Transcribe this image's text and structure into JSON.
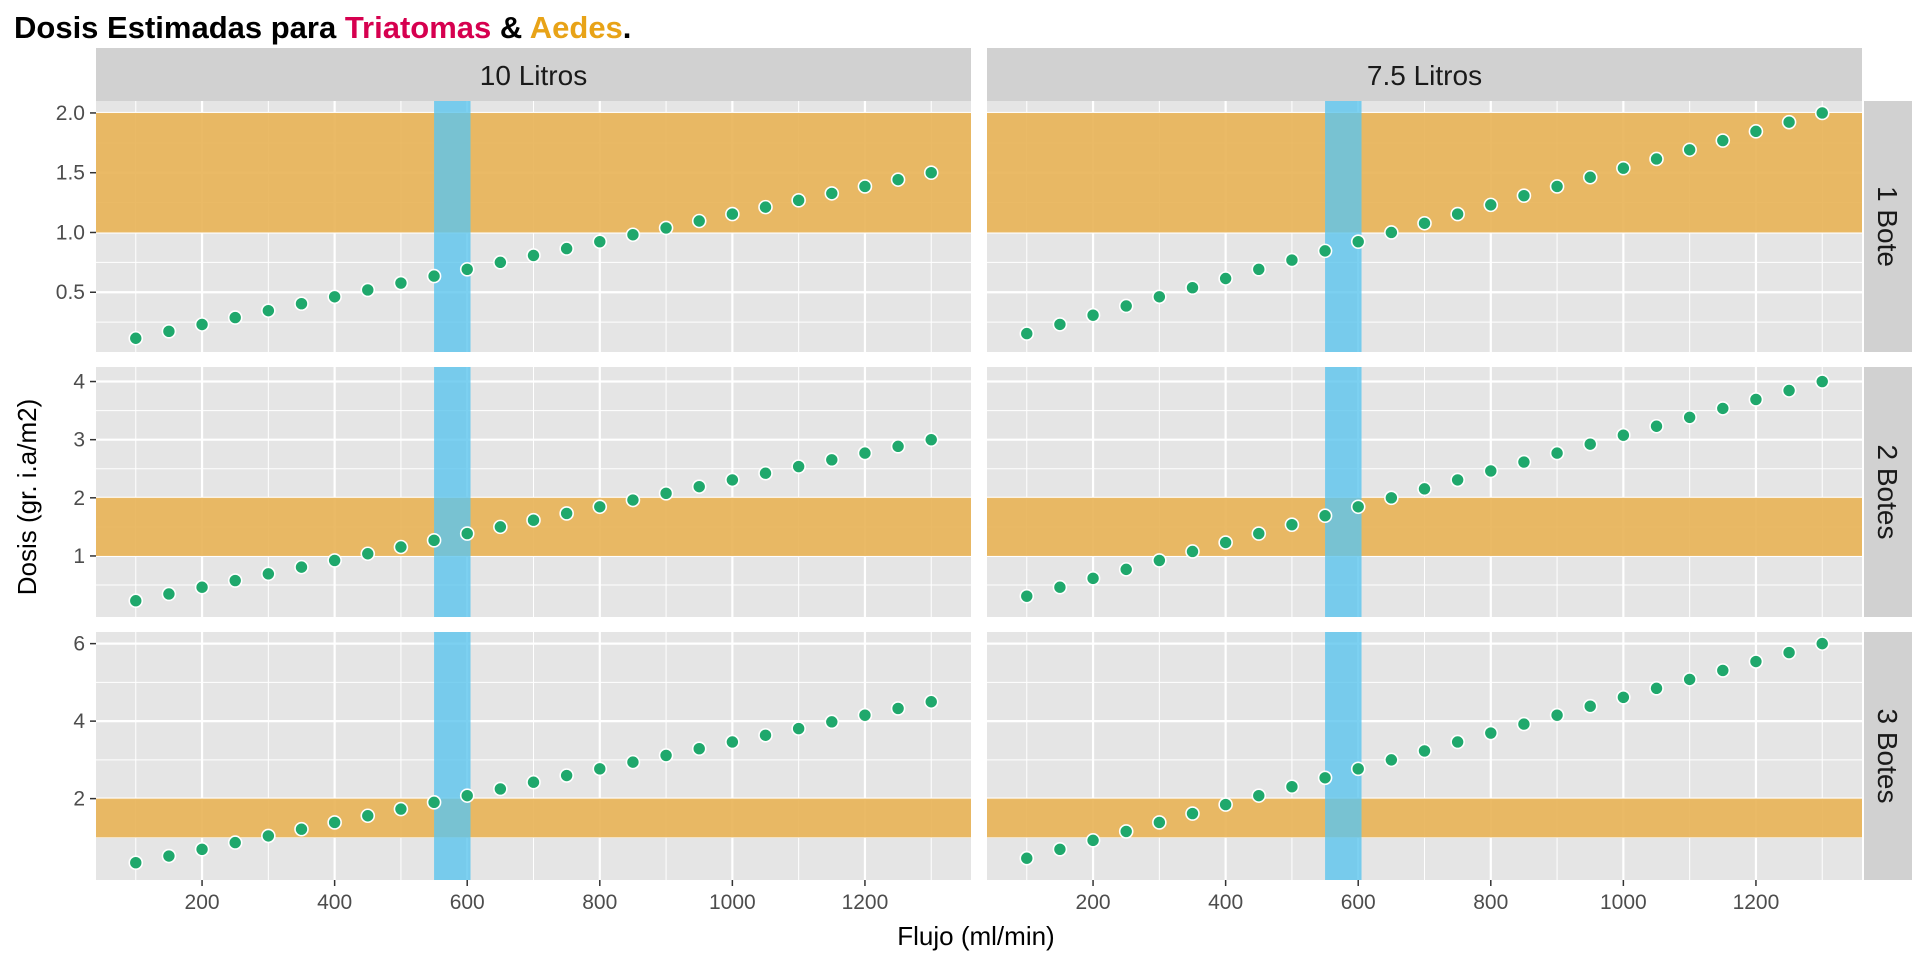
{
  "title": {
    "prefix": "Dosis Estimadas para ",
    "highlight1": "Triatomas",
    "connector": " & ",
    "highlight2": "Aedes",
    "suffix": ".",
    "color1": "#D6004F",
    "color2": "#E8A317"
  },
  "colors": {
    "panel_bg": "#E5E5E5",
    "strip_bg": "#D1D1D1",
    "grid": "#FFFFFF",
    "aedes_band": "#E8B355",
    "triatoma_band": "#5BC4EE",
    "point_fill": "#1FA86C",
    "point_stroke": "#FFFFFF"
  },
  "chart_data": {
    "type": "scatter",
    "xlabel": "Flujo (ml/min)",
    "ylabel": "Dosis (gr. i.a/m2)",
    "x_ticks": [
      200,
      400,
      600,
      800,
      1000,
      1200
    ],
    "xlim": [
      40,
      1360
    ],
    "x": [
      100,
      150,
      200,
      250,
      300,
      350,
      400,
      450,
      500,
      550,
      600,
      650,
      700,
      750,
      800,
      850,
      900,
      950,
      1000,
      1050,
      1100,
      1150,
      1200,
      1250,
      1300
    ],
    "columns": [
      "10 Litros",
      "7.5 Litros"
    ],
    "rows": [
      {
        "label": "1 Bote",
        "ylim": [
          0.0,
          2.1
        ],
        "y_ticks": [
          0.5,
          1.0,
          1.5,
          2.0
        ],
        "y_tick_labels": [
          "0.5",
          "1.0",
          "1.5",
          "2.0"
        ],
        "aedes_band": [
          1.0,
          2.0
        ]
      },
      {
        "label": "2 Botes",
        "ylim": [
          -0.05,
          4.25
        ],
        "y_ticks": [
          1,
          2,
          3,
          4
        ],
        "y_tick_labels": [
          "1",
          "2",
          "3",
          "4"
        ],
        "aedes_band": [
          1.0,
          2.0
        ]
      },
      {
        "label": "3 Botes",
        "ylim": [
          -0.1,
          6.3
        ],
        "y_ticks": [
          2,
          4,
          6
        ],
        "y_tick_labels": [
          "2",
          "4",
          "6"
        ],
        "aedes_band": [
          1.0,
          2.0
        ]
      }
    ],
    "triatoma_band_x": [
      550,
      605
    ],
    "panels": [
      {
        "row": 0,
        "col": 0,
        "y": [
          0.115,
          0.173,
          0.23,
          0.288,
          0.346,
          0.404,
          0.462,
          0.519,
          0.577,
          0.635,
          0.692,
          0.75,
          0.808,
          0.865,
          0.923,
          0.981,
          1.038,
          1.096,
          1.154,
          1.212,
          1.269,
          1.327,
          1.385,
          1.442,
          1.5
        ]
      },
      {
        "row": 0,
        "col": 1,
        "y": [
          0.154,
          0.231,
          0.308,
          0.385,
          0.462,
          0.538,
          0.615,
          0.692,
          0.769,
          0.846,
          0.923,
          1.0,
          1.077,
          1.154,
          1.231,
          1.308,
          1.385,
          1.462,
          1.538,
          1.615,
          1.692,
          1.769,
          1.846,
          1.923,
          2.0
        ]
      },
      {
        "row": 1,
        "col": 0,
        "y": [
          0.23,
          0.346,
          0.462,
          0.577,
          0.692,
          0.808,
          0.923,
          1.038,
          1.154,
          1.269,
          1.385,
          1.5,
          1.615,
          1.731,
          1.846,
          1.962,
          2.077,
          2.192,
          2.308,
          2.423,
          2.538,
          2.654,
          2.769,
          2.885,
          3.0
        ]
      },
      {
        "row": 1,
        "col": 1,
        "y": [
          0.308,
          0.462,
          0.615,
          0.769,
          0.923,
          1.077,
          1.231,
          1.385,
          1.538,
          1.692,
          1.846,
          2.0,
          2.154,
          2.308,
          2.462,
          2.615,
          2.769,
          2.923,
          3.077,
          3.231,
          3.385,
          3.538,
          3.692,
          3.846,
          4.0
        ]
      },
      {
        "row": 2,
        "col": 0,
        "y": [
          0.346,
          0.519,
          0.692,
          0.865,
          1.038,
          1.212,
          1.385,
          1.558,
          1.731,
          1.904,
          2.077,
          2.25,
          2.423,
          2.596,
          2.769,
          2.942,
          3.115,
          3.288,
          3.462,
          3.635,
          3.808,
          3.981,
          4.154,
          4.327,
          4.5
        ]
      },
      {
        "row": 2,
        "col": 1,
        "y": [
          0.462,
          0.692,
          0.923,
          1.154,
          1.385,
          1.615,
          1.846,
          2.077,
          2.308,
          2.538,
          2.769,
          3.0,
          3.231,
          3.462,
          3.692,
          3.923,
          4.154,
          4.385,
          4.615,
          4.846,
          5.077,
          5.308,
          5.538,
          5.769,
          6.0
        ]
      }
    ]
  }
}
